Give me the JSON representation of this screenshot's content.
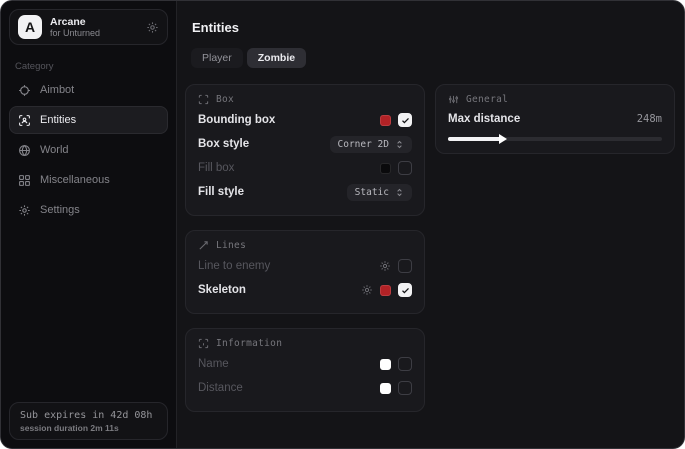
{
  "colors": {
    "accent_red": "#b22226",
    "swatch_black": "#0a0a0c",
    "swatch_white": "#ffffff",
    "card_bg": "#19191d",
    "sidebar_bg": "#0d0d10",
    "main_bg": "#141417",
    "tab_selected_bg": "#2e2e34"
  },
  "sidebar": {
    "brand": {
      "initial": "A",
      "name": "Arcane",
      "subtitle": "for Unturned",
      "icon": "gear-icon"
    },
    "category_label": "Category",
    "items": [
      {
        "label": "Aimbot",
        "icon": "crosshair-icon",
        "selected": false
      },
      {
        "label": "Entities",
        "icon": "entity-scan-icon",
        "selected": true
      },
      {
        "label": "World",
        "icon": "globe-icon",
        "selected": false
      },
      {
        "label": "Miscellaneous",
        "icon": "grid-icon",
        "selected": false
      },
      {
        "label": "Settings",
        "icon": "gear-icon",
        "selected": false
      }
    ],
    "subscription": {
      "expires_text": "Sub expires in 42d 08h",
      "session_text": "session duration 2m 11s"
    }
  },
  "main": {
    "title": "Entities",
    "tabs": [
      {
        "label": "Player",
        "selected": false
      },
      {
        "label": "Zombie",
        "selected": true
      }
    ],
    "cards": {
      "box": {
        "title": "Box",
        "icon": "scan-brackets-icon",
        "rows": [
          {
            "label": "Bounding box",
            "enabled": true,
            "swatch": "#b22226",
            "checked": true
          },
          {
            "label": "Box style",
            "enabled": true,
            "dropdown_value": "Corner 2D"
          },
          {
            "label": "Fill box",
            "enabled": false,
            "swatch": "#0a0a0c",
            "checked": false
          },
          {
            "label": "Fill style",
            "enabled": true,
            "dropdown_value": "Static"
          }
        ]
      },
      "general": {
        "title": "General",
        "icon": "sliders-icon",
        "max_distance": {
          "label": "Max distance",
          "value_label": "248m",
          "percent": 24.8
        }
      },
      "lines": {
        "title": "Lines",
        "icon": "diagonal-line-icon",
        "rows": [
          {
            "label": "Line to enemy",
            "enabled": false,
            "has_gear": true,
            "checked": false
          },
          {
            "label": "Skeleton",
            "enabled": true,
            "has_gear": true,
            "swatch": "#b22226",
            "checked": true
          }
        ]
      },
      "information": {
        "title": "Information",
        "icon": "info-scan-icon",
        "rows": [
          {
            "label": "Name",
            "enabled": false,
            "swatch": "#ffffff",
            "checked": false
          },
          {
            "label": "Distance",
            "enabled": false,
            "swatch": "#ffffff",
            "checked": false
          }
        ]
      }
    }
  }
}
